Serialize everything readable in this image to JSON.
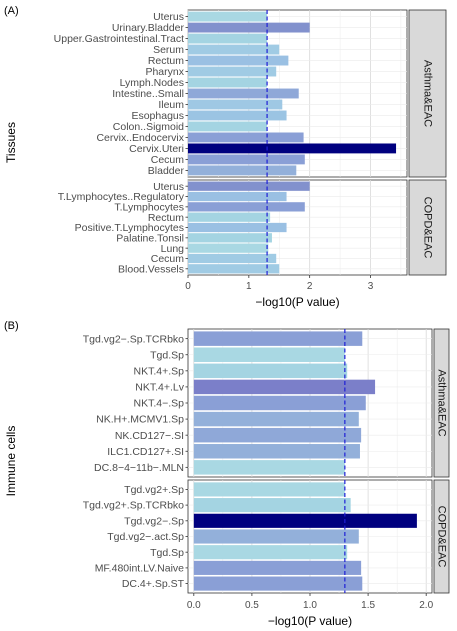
{
  "chart_data": [
    {
      "panel_label": "(A)",
      "type": "bar",
      "orientation": "horizontal",
      "xlabel": "−log10(P value)",
      "ylabel": "Tissues",
      "xlim": [
        0,
        3.6
      ],
      "xticks": [
        "0",
        "1",
        "2",
        "3"
      ],
      "reference_line": 1.3,
      "facets": [
        {
          "strip": "Asthma&EAC",
          "categories": [
            "Uterus",
            "Urinary.Bladder",
            "Upper.Gastrointestinal.Tract",
            "Serum",
            "Rectum",
            "Pharynx",
            "Lymph.Nodes",
            "Intestine..Small",
            "Ileum",
            "Esophagus",
            "Colon..Sigmoid",
            "Cervix..Endocervix",
            "Cervix.Uteri",
            "Cecum",
            "Bladder"
          ],
          "values": [
            1.3,
            2.0,
            1.3,
            1.5,
            1.65,
            1.45,
            1.3,
            1.82,
            1.55,
            1.62,
            1.3,
            1.9,
            3.42,
            1.92,
            1.78
          ],
          "colors": [
            "#a9d8e3",
            "#8291cd",
            "#a4d4e2",
            "#a0cbe4",
            "#9ac0e3",
            "#a0cbe4",
            "#a4d4e2",
            "#8fa8d8",
            "#9fc8e4",
            "#9bc4e3",
            "#a4d4e2",
            "#8a9fd6",
            "#00007f",
            "#8a9fd6",
            "#93b0da"
          ]
        },
        {
          "strip": "COPD&EAC",
          "categories": [
            "Uterus",
            "T.Lymphocytes..Regulatory",
            "T.Lymphocytes",
            "Rectum",
            "Positive.T.Lymphocytes",
            "Palatine.Tonsil",
            "Lung",
            "Cecum",
            "Blood.Vessels"
          ],
          "values": [
            2.0,
            1.62,
            1.92,
            1.35,
            1.62,
            1.38,
            1.32,
            1.45,
            1.5
          ],
          "colors": [
            "#8291cd",
            "#9ac0e3",
            "#8a9fd6",
            "#a4d4e2",
            "#9ac0e3",
            "#a4d4e2",
            "#a9d8e3",
            "#a0cbe4",
            "#a0cbe4"
          ]
        }
      ]
    },
    {
      "panel_label": "(B)",
      "type": "bar",
      "orientation": "horizontal",
      "xlabel": "−log10(P value)",
      "ylabel": "Immune cells",
      "xlim": [
        -0.05,
        2.05
      ],
      "xticks": [
        "0.0",
        "0.5",
        "1.0",
        "1.5",
        "2.0"
      ],
      "reference_line": 1.3,
      "facets": [
        {
          "strip": "Asthma&EAC",
          "categories": [
            "Tgd.vg2−.Sp.TCRbko",
            "Tgd.Sp",
            "NKT.4+.Sp",
            "NKT.4+.Lv",
            "NKT.4−.Sp",
            "NK.H+.MCMV1.Sp",
            "NK.CD127−.SI",
            "ILC1.CD127+.SI",
            "DC.8−4−11b−.MLN"
          ],
          "values": [
            1.45,
            1.3,
            1.32,
            1.56,
            1.48,
            1.42,
            1.44,
            1.43,
            1.3
          ],
          "colors": [
            "#8a9fd6",
            "#a9d8e3",
            "#a4d4e2",
            "#7b7fc9",
            "#8a9fd6",
            "#93b0da",
            "#8fa8d8",
            "#93b0da",
            "#a9d8e3"
          ]
        },
        {
          "strip": "COPD&EAC",
          "categories": [
            "Tgd.vg2+.Sp",
            "Tgd.vg2+.Sp.TCRbko",
            "Tgd.vg2−.Sp",
            "Tgd.vg2−.act.Sp",
            "Tgd.Sp",
            "MF.480int.LV.Naive",
            "DC.4+.Sp.ST"
          ],
          "values": [
            1.3,
            1.35,
            1.92,
            1.42,
            1.32,
            1.44,
            1.45
          ],
          "colors": [
            "#a9d8e3",
            "#a4d4e2",
            "#00007f",
            "#93b0da",
            "#a9d8e3",
            "#8a9fd6",
            "#8a9fd6"
          ]
        }
      ]
    }
  ]
}
